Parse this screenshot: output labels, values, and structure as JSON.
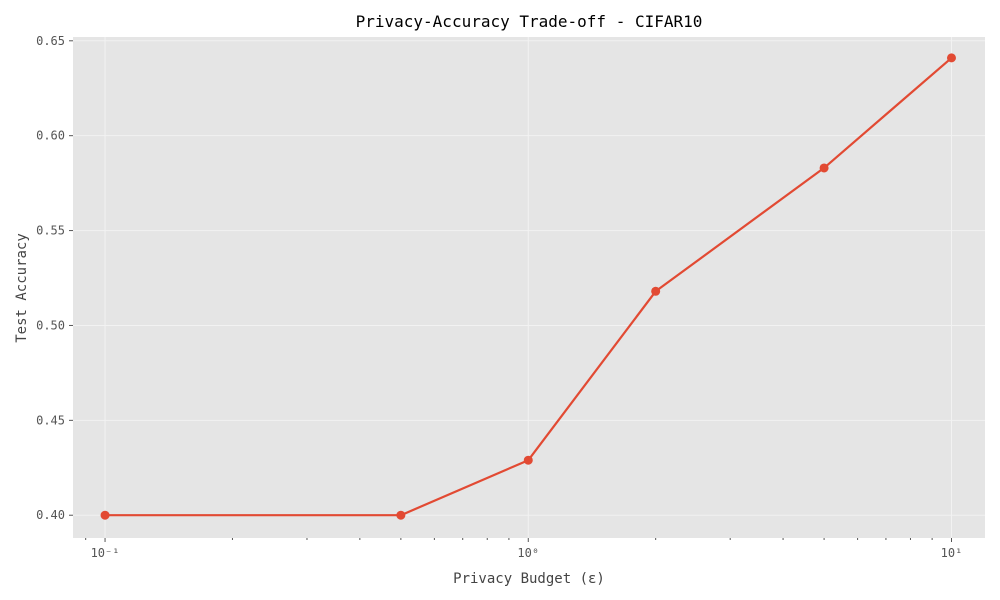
{
  "chart_data": {
    "type": "line",
    "title": "Privacy-Accuracy Trade-off - CIFAR10",
    "xlabel": "Privacy Budget (ε)",
    "ylabel": "Test Accuracy",
    "x_scale": "log",
    "xlim": [
      0.084,
      12.0
    ],
    "ylim": [
      0.388,
      0.652
    ],
    "grid": true,
    "x_ticks": [
      {
        "value": 0.1,
        "label": "10⁻¹"
      },
      {
        "value": 1,
        "label": "10⁰"
      },
      {
        "value": 10,
        "label": "10¹"
      }
    ],
    "y_ticks": [
      {
        "value": 0.4,
        "label": "0.40"
      },
      {
        "value": 0.45,
        "label": "0.45"
      },
      {
        "value": 0.5,
        "label": "0.50"
      },
      {
        "value": 0.55,
        "label": "0.55"
      },
      {
        "value": 0.6,
        "label": "0.60"
      },
      {
        "value": 0.65,
        "label": "0.65"
      }
    ],
    "series": [
      {
        "color": "#E24A33",
        "x": [
          0.1,
          0.5,
          1.0,
          2.0,
          5.0,
          10.0
        ],
        "y": [
          0.4,
          0.4,
          0.429,
          0.518,
          0.583,
          0.641
        ]
      }
    ]
  },
  "colors": {
    "plot_background": "#E5E5E5",
    "grid": "#F2F2F2",
    "line": "#E24A33"
  }
}
